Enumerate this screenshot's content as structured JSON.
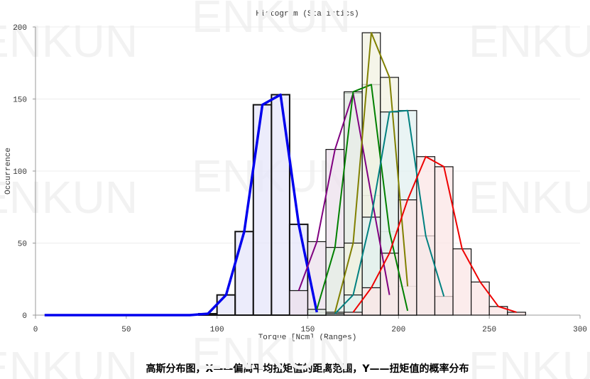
{
  "chart_data": {
    "type": "histogram",
    "title": "Histogram (Statistics)",
    "x_label": "Torque [Ncm] (Ranges)",
    "y_label": "Occurrence",
    "caption": "高斯分布图，X——偏离平均扭矩值的距离范围，Y——扭矩值的概率分布",
    "watermark": "ENKUN",
    "xlim": [
      0,
      300
    ],
    "xticks": [
      0,
      50,
      100,
      150,
      200,
      250,
      300
    ],
    "ylim": [
      0,
      200
    ],
    "yticks": [
      0,
      50,
      100,
      150,
      200
    ],
    "grid": true,
    "series": [
      {
        "color": "#0000ee",
        "fill": "#e6e6fa",
        "bins": [
          0,
          10,
          20,
          30,
          40,
          50,
          60,
          70,
          80,
          90,
          100,
          110,
          120,
          130,
          140,
          150,
          160
        ],
        "values": [
          0,
          0,
          0,
          0,
          0,
          0,
          0,
          0,
          0,
          1,
          14,
          58,
          146,
          153,
          63,
          2
        ]
      },
      {
        "color": "#800080",
        "fill": "#ece0ec",
        "bins": [
          140,
          150,
          160,
          170,
          180,
          190,
          200
        ],
        "values": [
          17,
          51,
          115,
          154,
          83,
          14
        ]
      },
      {
        "color": "#008000",
        "fill": "#e4efe4",
        "bins": [
          150,
          160,
          170,
          180,
          190,
          200,
          210
        ],
        "values": [
          4,
          47,
          155,
          160,
          58,
          3
        ]
      },
      {
        "color": "#808000",
        "fill": "#f2f2e2",
        "bins": [
          160,
          170,
          180,
          190,
          200,
          210
        ],
        "values": [
          2,
          50,
          196,
          165,
          20
        ]
      },
      {
        "color": "#008080",
        "fill": "#e2f0f0",
        "bins": [
          160,
          170,
          180,
          190,
          200,
          210,
          220,
          230
        ],
        "values": [
          1,
          14,
          68,
          141,
          142,
          55,
          13
        ]
      },
      {
        "color": "#ee0000",
        "fill": "#fbe6e6",
        "bins": [
          170,
          180,
          190,
          200,
          210,
          220,
          230,
          240,
          250,
          260,
          270
        ],
        "values": [
          2,
          19,
          43,
          80,
          110,
          103,
          46,
          23,
          6,
          2
        ]
      }
    ]
  }
}
